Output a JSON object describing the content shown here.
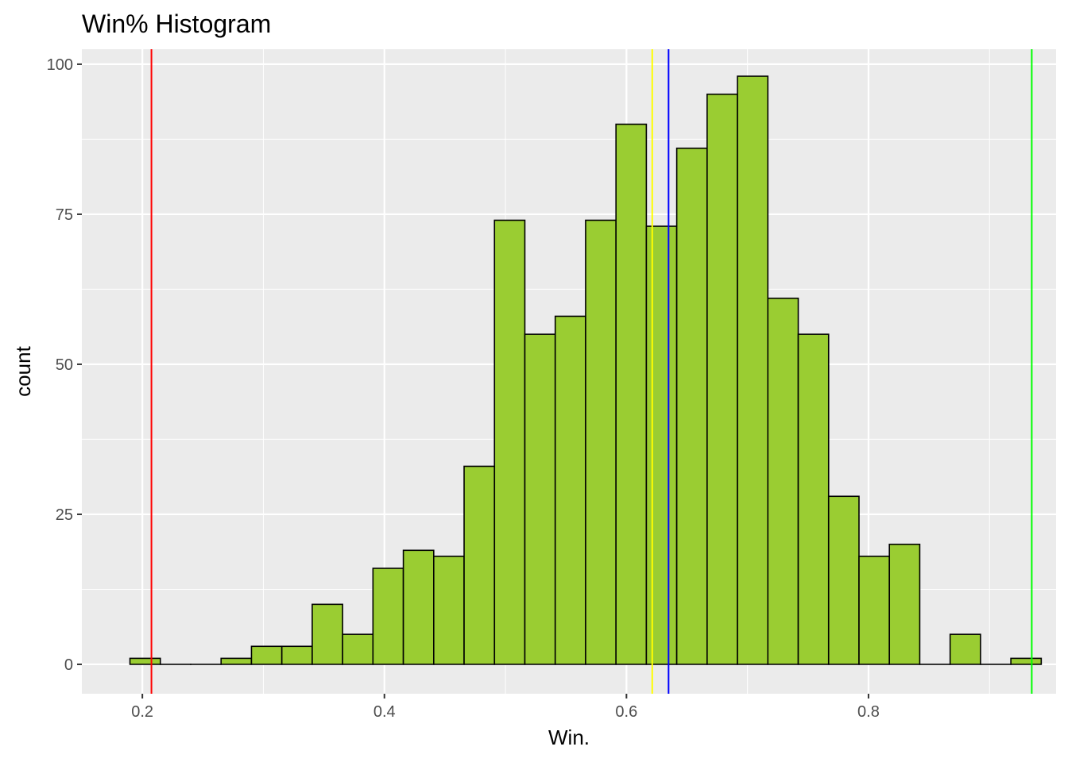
{
  "chart_data": {
    "type": "bar",
    "title": "Win% Histogram",
    "xlabel": "Win.",
    "ylabel": "count",
    "xlim": [
      0.15,
      0.955
    ],
    "ylim": [
      -4.9,
      102.5
    ],
    "bin_width": 0.0251,
    "x_ticks": [
      0.2,
      0.4,
      0.6,
      0.8
    ],
    "x_tick_labels": [
      "0.2",
      "0.4",
      "0.6",
      "0.8"
    ],
    "y_ticks": [
      0,
      25,
      50,
      75,
      100
    ],
    "y_tick_labels": [
      "0",
      "25",
      "50",
      "75",
      "100"
    ],
    "bins": [
      {
        "x": 0.2023,
        "count": 1
      },
      {
        "x": 0.2274,
        "count": 0
      },
      {
        "x": 0.2525,
        "count": 0
      },
      {
        "x": 0.2776,
        "count": 1
      },
      {
        "x": 0.3027,
        "count": 3
      },
      {
        "x": 0.3278,
        "count": 3
      },
      {
        "x": 0.3529,
        "count": 10
      },
      {
        "x": 0.378,
        "count": 5
      },
      {
        "x": 0.4031,
        "count": 16
      },
      {
        "x": 0.4282,
        "count": 19
      },
      {
        "x": 0.4533,
        "count": 18
      },
      {
        "x": 0.4784,
        "count": 33
      },
      {
        "x": 0.5035,
        "count": 74
      },
      {
        "x": 0.5286,
        "count": 55
      },
      {
        "x": 0.5537,
        "count": 58
      },
      {
        "x": 0.5788,
        "count": 74
      },
      {
        "x": 0.6039,
        "count": 90
      },
      {
        "x": 0.629,
        "count": 73
      },
      {
        "x": 0.6541,
        "count": 86
      },
      {
        "x": 0.6792,
        "count": 95
      },
      {
        "x": 0.7043,
        "count": 98
      },
      {
        "x": 0.7294,
        "count": 61
      },
      {
        "x": 0.7545,
        "count": 55
      },
      {
        "x": 0.7796,
        "count": 28
      },
      {
        "x": 0.8047,
        "count": 18
      },
      {
        "x": 0.8298,
        "count": 20
      },
      {
        "x": 0.8549,
        "count": 0
      },
      {
        "x": 0.88,
        "count": 5
      },
      {
        "x": 0.9051,
        "count": 0
      },
      {
        "x": 0.9302,
        "count": 1
      }
    ],
    "vlines": [
      {
        "x": 0.2075,
        "color": "#ff0000"
      },
      {
        "x": 0.6213,
        "color": "#ffff00"
      },
      {
        "x": 0.6348,
        "color": "#0000ff"
      },
      {
        "x": 0.9349,
        "color": "#00ff00"
      }
    ],
    "grid": true,
    "colors": {
      "bar_fill": "#9acd32",
      "bar_outline": "#000000",
      "panel_background": "#ebebeb",
      "grid_line": "#ffffff"
    }
  }
}
